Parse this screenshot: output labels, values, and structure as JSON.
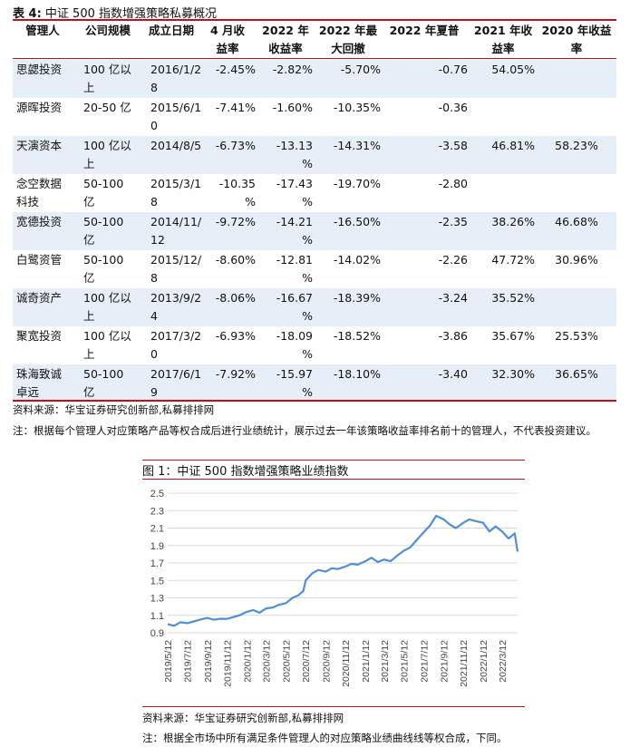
{
  "table": {
    "label": "表 4:",
    "title": "中证 500 指数增强策略私募概况",
    "headers": [
      [
        "管理人"
      ],
      [
        "公司规模"
      ],
      [
        "成立日期"
      ],
      [
        "4 月收",
        "益率"
      ],
      [
        "2022 年",
        "收益率"
      ],
      [
        "2022 年最",
        "大回撤"
      ],
      [
        "2022 年夏普"
      ],
      [
        "2021 年收",
        "益率"
      ],
      [
        "2020 年收益",
        "率"
      ]
    ],
    "rows": [
      {
        "manager": [
          "思勰投资"
        ],
        "scale": [
          "100 亿以",
          "上"
        ],
        "date": [
          "2016/1/2",
          "8"
        ],
        "apr": [
          "-2.45%"
        ],
        "ret2022": [
          "-2.82%"
        ],
        "dd": "-5.70%",
        "sharpe": "-0.76",
        "ret2021": "54.05%",
        "ret2020": ""
      },
      {
        "manager": [
          "源晖投资"
        ],
        "scale": [
          "20-50 亿"
        ],
        "date": [
          "2015/6/1",
          "0"
        ],
        "apr": [
          "-7.41%"
        ],
        "ret2022": [
          "-1.60%"
        ],
        "dd": "-10.35%",
        "sharpe": "-0.36",
        "ret2021": "",
        "ret2020": ""
      },
      {
        "manager": [
          "天演资本"
        ],
        "scale": [
          "100 亿以",
          "上"
        ],
        "date": [
          "2014/8/5"
        ],
        "apr": [
          "-6.73%"
        ],
        "ret2022": [
          "-13.13",
          "%"
        ],
        "dd": "-14.31%",
        "sharpe": "-3.58",
        "ret2021": "46.81%",
        "ret2020": "58.23%"
      },
      {
        "manager": [
          "念空数据",
          "科技"
        ],
        "scale": [
          "50-100",
          "亿"
        ],
        "date": [
          "2015/3/1",
          "8"
        ],
        "apr": [
          "-10.35",
          "%"
        ],
        "ret2022": [
          "-17.43",
          "%"
        ],
        "dd": "-19.70%",
        "sharpe": "-2.80",
        "ret2021": "",
        "ret2020": ""
      },
      {
        "manager": [
          "宽德投资"
        ],
        "scale": [
          "50-100",
          "亿"
        ],
        "date": [
          "2014/11/",
          "12"
        ],
        "apr": [
          "-9.72%"
        ],
        "ret2022": [
          "-14.21",
          "%"
        ],
        "dd": "-16.50%",
        "sharpe": "-2.35",
        "ret2021": "38.26%",
        "ret2020": "46.68%"
      },
      {
        "manager": [
          "白鹭资管"
        ],
        "scale": [
          "50-100",
          "亿"
        ],
        "date": [
          "2015/12/",
          "8"
        ],
        "apr": [
          "-8.60%"
        ],
        "ret2022": [
          "-12.81",
          "%"
        ],
        "dd": "-14.02%",
        "sharpe": "-2.26",
        "ret2021": "47.72%",
        "ret2020": "30.96%"
      },
      {
        "manager": [
          "诚奇资产"
        ],
        "scale": [
          "100 亿以",
          "上"
        ],
        "date": [
          "2013/9/2",
          "4"
        ],
        "apr": [
          "-8.06%"
        ],
        "ret2022": [
          "-16.67",
          "%"
        ],
        "dd": "-18.39%",
        "sharpe": "-3.24",
        "ret2021": "35.52%",
        "ret2020": ""
      },
      {
        "manager": [
          "聚宽投资"
        ],
        "scale": [
          "100 亿以",
          "上"
        ],
        "date": [
          "2017/3/2",
          "0"
        ],
        "apr": [
          "-6.93%"
        ],
        "ret2022": [
          "-18.09",
          "%"
        ],
        "dd": "-18.52%",
        "sharpe": "-3.86",
        "ret2021": "35.67%",
        "ret2020": "25.53%"
      },
      {
        "manager": [
          "珠海致诚",
          "卓远"
        ],
        "scale": [
          "50-100",
          "亿"
        ],
        "date": [
          "2017/6/1",
          "9"
        ],
        "apr": [
          "-7.92%"
        ],
        "ret2022": [
          "-15.97",
          "%"
        ],
        "dd": "-18.10%",
        "sharpe": "-3.40",
        "ret2021": "32.30%",
        "ret2020": "36.65%"
      }
    ],
    "source": "资料来源：华宝证券研究创新部,私募排排网",
    "note": "注：根据每个管理人对应策略产品等权合成后进行业绩统计，展示过去一年该策略收益率排名前十的管理人，不代表投资建议。"
  },
  "figure": {
    "title": "图 1：中证 500 指数增强策略业绩指数",
    "source": "资料来源：华宝证券研究创新部,私募排排网",
    "note": "注：根据全市场中所有满足条件管理人的对应策略业绩曲线线等权合成，下同。"
  },
  "chart_data": {
    "type": "line",
    "title": "",
    "xlabel": "",
    "ylabel": "",
    "ylim": [
      0.9,
      2.5
    ],
    "yticks": [
      "0.9",
      "1.1",
      "1.3",
      "1.5",
      "1.7",
      "1.9",
      "2.1",
      "2.3",
      "2.5"
    ],
    "xticks": [
      "2019/5/12",
      "2019/7/12",
      "2019/9/12",
      "2019/11/12",
      "2020/1/12",
      "2020/3/12",
      "2020/5/12",
      "2020/7/12",
      "2020/9/12",
      "2020/11/12",
      "2021/1/12",
      "2021/3/12",
      "2021/5/12",
      "2021/7/12",
      "2021/9/12",
      "2021/11/12",
      "2022/1/12",
      "2022/3/12"
    ],
    "grid": true,
    "legend": "none",
    "line_color": "#4f8fd6",
    "series": [
      {
        "x": [
          "2019/5/12",
          "2019/6/1",
          "2019/6/20",
          "2019/7/12",
          "2019/8/1",
          "2019/8/20",
          "2019/9/12",
          "2019/10/1",
          "2019/10/20",
          "2019/11/12",
          "2019/12/1",
          "2019/12/20",
          "2020/1/12",
          "2020/2/1",
          "2020/2/20",
          "2020/3/12",
          "2020/4/1",
          "2020/4/20",
          "2020/5/12",
          "2020/6/1",
          "2020/6/20",
          "2020/7/5",
          "2020/7/12",
          "2020/8/1",
          "2020/8/20",
          "2020/9/12",
          "2020/10/1",
          "2020/10/20",
          "2020/11/12",
          "2020/12/1",
          "2020/12/20",
          "2021/1/12",
          "2021/2/1",
          "2021/2/20",
          "2021/3/12",
          "2021/4/1",
          "2021/4/20",
          "2021/5/12",
          "2021/6/1",
          "2021/6/20",
          "2021/7/12",
          "2021/8/1",
          "2021/8/20",
          "2021/9/12",
          "2021/10/1",
          "2021/10/20",
          "2021/11/12",
          "2021/12/1",
          "2021/12/20",
          "2022/1/12",
          "2022/2/1",
          "2022/2/20",
          "2022/3/12",
          "2022/4/1",
          "2022/4/20",
          "2022/4/29"
        ],
        "values": [
          1.0,
          0.98,
          1.02,
          1.01,
          1.03,
          1.05,
          1.07,
          1.05,
          1.06,
          1.06,
          1.08,
          1.1,
          1.14,
          1.16,
          1.13,
          1.18,
          1.19,
          1.22,
          1.24,
          1.3,
          1.33,
          1.38,
          1.5,
          1.58,
          1.62,
          1.6,
          1.64,
          1.63,
          1.66,
          1.69,
          1.68,
          1.72,
          1.76,
          1.71,
          1.74,
          1.72,
          1.78,
          1.84,
          1.88,
          1.96,
          2.05,
          2.13,
          2.24,
          2.2,
          2.14,
          2.1,
          2.16,
          2.2,
          2.18,
          2.16,
          2.06,
          2.12,
          2.06,
          1.98,
          2.04,
          1.83
        ]
      }
    ]
  }
}
